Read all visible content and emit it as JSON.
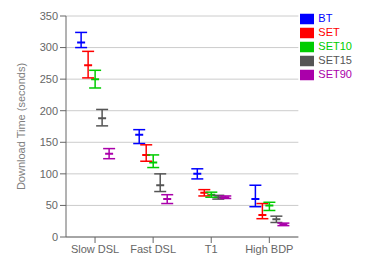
{
  "chart_data": {
    "type": "errorbar",
    "categories": [
      "Slow DSL",
      "Fast DSL",
      "T1",
      "High BDP"
    ],
    "series": [
      {
        "name": "BT",
        "color": "#0000ff",
        "values": [
          308,
          162,
          100,
          60
        ],
        "yerr_low": [
          8,
          14,
          8,
          12
        ],
        "yerr_high": [
          16,
          8,
          8,
          22
        ]
      },
      {
        "name": "SET",
        "color": "#ff0000",
        "values": [
          272,
          130,
          70,
          35
        ],
        "yerr_low": [
          20,
          10,
          5,
          6
        ],
        "yerr_high": [
          22,
          16,
          5,
          18
        ]
      },
      {
        "name": "SET10",
        "color": "#00cc00",
        "values": [
          250,
          118,
          67,
          50
        ],
        "yerr_low": [
          14,
          8,
          4,
          8
        ],
        "yerr_high": [
          14,
          12,
          4,
          5
        ]
      },
      {
        "name": "SET15",
        "color": "#555555",
        "values": [
          188,
          82,
          63,
          28
        ],
        "yerr_low": [
          12,
          10,
          3,
          5
        ],
        "yerr_high": [
          14,
          18,
          3,
          5
        ]
      },
      {
        "name": "SET90",
        "color": "#aa00aa",
        "values": [
          132,
          60,
          63,
          20
        ],
        "yerr_low": [
          8,
          7,
          2,
          2
        ],
        "yerr_high": [
          8,
          7,
          2,
          2
        ]
      }
    ],
    "ylabel": "Download Time (seconds)",
    "ylim": [
      0,
      350
    ],
    "yticks": [
      0,
      50,
      100,
      150,
      200,
      250,
      300,
      350
    ],
    "grid": true,
    "legend": "upper right"
  }
}
